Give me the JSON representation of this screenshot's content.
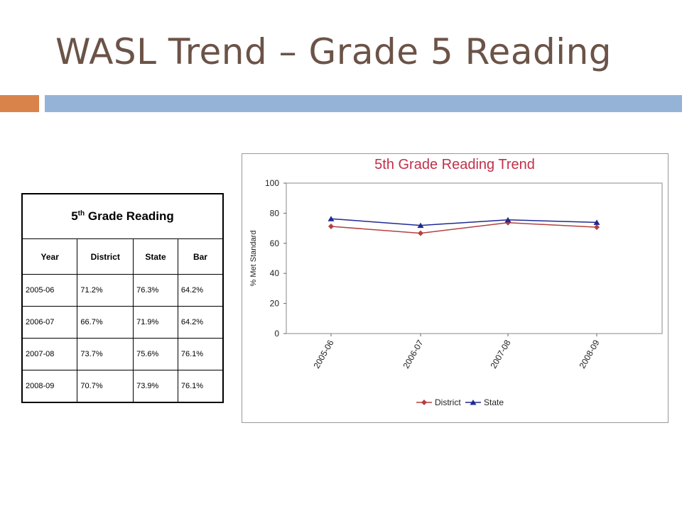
{
  "slide": {
    "title": "WASL Trend – Grade 5 Reading"
  },
  "table": {
    "title": {
      "number": "5",
      "suffix": "th",
      "text": "Grade Reading"
    },
    "header": [
      "Year",
      "District",
      "State",
      "Bar"
    ],
    "rows": [
      [
        "2005-06",
        "71.2%",
        "76.3%",
        "64.2%"
      ],
      [
        "2006-07",
        "66.7%",
        "71.9%",
        "64.2%"
      ],
      [
        "2007-08",
        "73.7%",
        "75.6%",
        "76.1%"
      ],
      [
        "2008-09",
        "70.7%",
        "73.9%",
        "76.1%"
      ]
    ]
  },
  "chart_data": {
    "type": "line",
    "title": "5th Grade Reading Trend",
    "y_label": "% Met Standard",
    "categories": [
      "2005-06",
      "2006-07",
      "2007-08",
      "2008-09"
    ],
    "series": [
      {
        "name": "District",
        "color": "#b5403f",
        "marker": "diamond",
        "values": [
          71.2,
          66.7,
          73.7,
          70.7
        ]
      },
      {
        "name": "State",
        "color": "#1f2a90",
        "marker": "triangle",
        "values": [
          76.3,
          71.9,
          75.6,
          73.9
        ]
      }
    ],
    "ylim": [
      0,
      100
    ],
    "yticks": [
      0,
      20,
      40,
      60,
      80,
      100
    ],
    "grid": false,
    "legend": "bottom"
  }
}
